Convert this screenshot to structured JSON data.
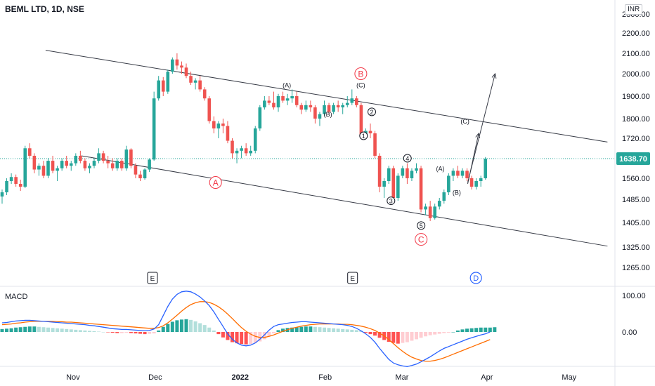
{
  "header": {
    "title": "BEML LTD, 1D, NSE",
    "currency_badge": "INR"
  },
  "macd_panel": {
    "title": "MACD"
  },
  "last_price_label": "1638.70",
  "chart_data": {
    "type": "candlestick",
    "title": "BEML LTD, 1D, NSE",
    "price_axis": {
      "ticks": [
        "2300.00",
        "2200.00",
        "2100.00",
        "2000.00",
        "1900.00",
        "1800.00",
        "1720.00",
        "1638.70",
        "1560.00",
        "1485.00",
        "1405.00",
        "1325.00",
        "1265.00"
      ]
    },
    "macd_axis": {
      "ticks": [
        "100.00",
        "0.00"
      ]
    },
    "x_axis": {
      "ticks": [
        "Nov",
        "Dec",
        "2022",
        "Feb",
        "Mar",
        "Apr",
        "May"
      ]
    },
    "last_price": 1638.7,
    "wave_labels": [
      {
        "text": "(A)",
        "price": 1950,
        "day": "2022-01-18"
      },
      {
        "text": "(B)",
        "price": 1820,
        "day": "2022-02-02"
      },
      {
        "text": "(C)",
        "price": 1950,
        "day": "2022-02-14"
      },
      {
        "text": "A",
        "price": 1545,
        "day": "2021-12-23"
      },
      {
        "text": "B",
        "price": 2000,
        "day": "2022-02-14"
      },
      {
        "text": "C",
        "price": 1350,
        "day": "2022-03-08"
      },
      {
        "text": "1",
        "price": 1730,
        "day": "2022-02-15"
      },
      {
        "text": "2",
        "price": 1830,
        "day": "2022-02-18"
      },
      {
        "text": "3",
        "price": 1480,
        "day": "2022-02-25"
      },
      {
        "text": "4",
        "price": 1640,
        "day": "2022-03-03"
      },
      {
        "text": "5",
        "price": 1395,
        "day": "2022-03-08"
      },
      {
        "text": "(A)",
        "price": 1600,
        "day": "2022-03-15"
      },
      {
        "text": "(B)",
        "price": 1510,
        "day": "2022-03-21"
      },
      {
        "text": "(C)",
        "price": 1790,
        "day": "2022-03-24"
      }
    ],
    "event_markers": [
      {
        "text": "E",
        "day": "2021-11-30"
      },
      {
        "text": "E",
        "day": "2022-02-11"
      },
      {
        "text": "D",
        "day": "2022-03-28"
      }
    ],
    "channel_lines": [
      {
        "from": {
          "day": "2021-10-22",
          "price": 2115
        },
        "to": {
          "day": "2022-05-15",
          "price": 1705
        }
      },
      {
        "from": {
          "day": "2021-11-04",
          "price": 1650
        },
        "to": {
          "day": "2022-05-15",
          "price": 1328
        }
      }
    ],
    "projection_arrows": [
      {
        "from": {
          "day": "2022-03-25",
          "price": 1545
        },
        "to": {
          "day": "2022-04-04",
          "price": 2000
        }
      },
      {
        "from": {
          "day": "2022-03-25",
          "price": 1540
        },
        "to": {
          "day": "2022-03-29",
          "price": 1740
        }
      }
    ],
    "candles": [
      [
        1495,
        1520,
        1470,
        1510
      ],
      [
        1510,
        1560,
        1500,
        1550
      ],
      [
        1550,
        1580,
        1540,
        1565
      ],
      [
        1565,
        1575,
        1530,
        1540
      ],
      [
        1540,
        1555,
        1515,
        1530
      ],
      [
        1530,
        1690,
        1525,
        1680
      ],
      [
        1680,
        1700,
        1640,
        1650
      ],
      [
        1650,
        1660,
        1580,
        1595
      ],
      [
        1595,
        1620,
        1570,
        1610
      ],
      [
        1610,
        1630,
        1560,
        1570
      ],
      [
        1570,
        1640,
        1560,
        1630
      ],
      [
        1630,
        1650,
        1580,
        1590
      ],
      [
        1590,
        1610,
        1550,
        1600
      ],
      [
        1600,
        1640,
        1590,
        1630
      ],
      [
        1630,
        1650,
        1600,
        1610
      ],
      [
        1610,
        1630,
        1590,
        1620
      ],
      [
        1620,
        1660,
        1610,
        1650
      ],
      [
        1650,
        1670,
        1620,
        1630
      ],
      [
        1630,
        1640,
        1590,
        1600
      ],
      [
        1600,
        1620,
        1580,
        1610
      ],
      [
        1610,
        1640,
        1600,
        1630
      ],
      [
        1630,
        1680,
        1620,
        1660
      ],
      [
        1660,
        1670,
        1620,
        1630
      ],
      [
        1630,
        1650,
        1600,
        1620
      ],
      [
        1620,
        1640,
        1590,
        1600
      ],
      [
        1600,
        1640,
        1590,
        1630
      ],
      [
        1630,
        1640,
        1590,
        1600
      ],
      [
        1600,
        1690,
        1590,
        1675
      ],
      [
        1675,
        1680,
        1600,
        1610
      ],
      [
        1610,
        1620,
        1560,
        1575
      ],
      [
        1575,
        1590,
        1550,
        1560
      ],
      [
        1560,
        1600,
        1555,
        1595
      ],
      [
        1595,
        1640,
        1585,
        1635
      ],
      [
        1635,
        1920,
        1630,
        1890
      ],
      [
        1890,
        1990,
        1880,
        1970
      ],
      [
        1970,
        1985,
        1900,
        1920
      ],
      [
        1920,
        2020,
        1910,
        2010
      ],
      [
        2010,
        2080,
        2000,
        2070
      ],
      [
        2070,
        2100,
        2020,
        2040
      ],
      [
        2040,
        2060,
        2000,
        2030
      ],
      [
        2030,
        2050,
        1980,
        1990
      ],
      [
        1990,
        2010,
        1950,
        1960
      ],
      [
        1960,
        1980,
        1930,
        1970
      ],
      [
        1970,
        1990,
        1920,
        1930
      ],
      [
        1930,
        1940,
        1880,
        1890
      ],
      [
        1890,
        1900,
        1780,
        1790
      ],
      [
        1790,
        1810,
        1740,
        1760
      ],
      [
        1760,
        1790,
        1720,
        1780
      ],
      [
        1780,
        1800,
        1740,
        1770
      ],
      [
        1770,
        1790,
        1700,
        1710
      ],
      [
        1710,
        1720,
        1640,
        1660
      ],
      [
        1660,
        1680,
        1620,
        1670
      ],
      [
        1670,
        1690,
        1640,
        1680
      ],
      [
        1680,
        1700,
        1650,
        1660
      ],
      [
        1660,
        1690,
        1650,
        1670
      ],
      [
        1670,
        1770,
        1660,
        1760
      ],
      [
        1760,
        1860,
        1750,
        1850
      ],
      [
        1850,
        1900,
        1840,
        1880
      ],
      [
        1880,
        1900,
        1860,
        1870
      ],
      [
        1870,
        1920,
        1840,
        1850
      ],
      [
        1850,
        1910,
        1830,
        1900
      ],
      [
        1900,
        1920,
        1870,
        1880
      ],
      [
        1880,
        1910,
        1860,
        1890
      ],
      [
        1890,
        1930,
        1870,
        1900
      ],
      [
        1900,
        1920,
        1850,
        1860
      ],
      [
        1860,
        1870,
        1820,
        1840
      ],
      [
        1840,
        1880,
        1830,
        1860
      ],
      [
        1860,
        1880,
        1830,
        1850
      ],
      [
        1850,
        1860,
        1780,
        1800
      ],
      [
        1800,
        1830,
        1770,
        1820
      ],
      [
        1820,
        1880,
        1810,
        1860
      ],
      [
        1860,
        1870,
        1820,
        1830
      ],
      [
        1830,
        1870,
        1820,
        1860
      ],
      [
        1860,
        1880,
        1830,
        1850
      ],
      [
        1850,
        1870,
        1820,
        1860
      ],
      [
        1860,
        1900,
        1850,
        1870
      ],
      [
        1870,
        1930,
        1860,
        1890
      ],
      [
        1890,
        1900,
        1850,
        1860
      ],
      [
        1860,
        1870,
        1720,
        1730
      ],
      [
        1730,
        1760,
        1720,
        1750
      ],
      [
        1750,
        1780,
        1720,
        1740
      ],
      [
        1740,
        1750,
        1640,
        1650
      ],
      [
        1650,
        1660,
        1510,
        1530
      ],
      [
        1530,
        1560,
        1490,
        1550
      ],
      [
        1550,
        1610,
        1540,
        1600
      ],
      [
        1600,
        1610,
        1480,
        1490
      ],
      [
        1490,
        1580,
        1480,
        1570
      ],
      [
        1570,
        1610,
        1560,
        1600
      ],
      [
        1600,
        1620,
        1540,
        1560
      ],
      [
        1560,
        1600,
        1550,
        1590
      ],
      [
        1590,
        1620,
        1580,
        1600
      ],
      [
        1600,
        1610,
        1440,
        1450
      ],
      [
        1450,
        1470,
        1430,
        1460
      ],
      [
        1460,
        1480,
        1410,
        1420
      ],
      [
        1420,
        1470,
        1415,
        1460
      ],
      [
        1460,
        1490,
        1450,
        1480
      ],
      [
        1480,
        1520,
        1470,
        1510
      ],
      [
        1510,
        1580,
        1500,
        1570
      ],
      [
        1570,
        1600,
        1550,
        1590
      ],
      [
        1590,
        1610,
        1560,
        1570
      ],
      [
        1570,
        1600,
        1560,
        1590
      ],
      [
        1590,
        1600,
        1550,
        1560
      ],
      [
        1560,
        1570,
        1520,
        1530
      ],
      [
        1530,
        1560,
        1520,
        1550
      ],
      [
        1550,
        1570,
        1530,
        1560
      ],
      [
        1560,
        1645,
        1555,
        1638.7
      ]
    ],
    "macd_histogram": [
      8,
      9,
      10,
      12,
      13,
      14,
      15,
      15,
      14,
      13,
      12,
      11,
      10,
      9,
      8,
      7,
      6,
      5,
      4,
      3,
      2,
      1,
      0,
      -1,
      -2,
      -3,
      -3,
      -2,
      -3,
      -4,
      -5,
      -6,
      -5,
      -4,
      4,
      14,
      22,
      28,
      32,
      34,
      35,
      33,
      29,
      24,
      19,
      12,
      4,
      -6,
      -15,
      -22,
      -28,
      -31,
      -33,
      -34,
      -33,
      -30,
      -26,
      -20,
      -12,
      -4,
      5,
      9,
      11,
      12,
      13,
      14,
      15,
      15,
      14,
      13,
      12,
      11,
      10,
      9,
      8,
      7,
      6,
      5,
      3,
      -2,
      -6,
      -10,
      -16,
      -22,
      -27,
      -30,
      -32,
      -30,
      -28,
      -24,
      -20,
      -16,
      -12,
      -9,
      -7,
      -5,
      -3,
      -2,
      0,
      4,
      7,
      9,
      10,
      11,
      12,
      12,
      12,
      13
    ],
    "macd_line": [
      25,
      26,
      28,
      30,
      31,
      32,
      32,
      31,
      30,
      29,
      28,
      27,
      26,
      25,
      24,
      23,
      22,
      21,
      20,
      18,
      17,
      15,
      13,
      11,
      9,
      8,
      7,
      7,
      6,
      5,
      4,
      3,
      4,
      8,
      20,
      45,
      70,
      90,
      103,
      110,
      112,
      110,
      104,
      96,
      85,
      72,
      55,
      35,
      15,
      -5,
      -20,
      -30,
      -36,
      -38,
      -36,
      -30,
      -20,
      -8,
      5,
      15,
      20,
      22,
      24,
      26,
      27,
      28,
      28,
      27,
      26,
      25,
      24,
      23,
      22,
      21,
      20,
      18,
      15,
      10,
      3,
      -5,
      -15,
      -28,
      -45,
      -60,
      -75,
      -85,
      -90,
      -93,
      -95,
      -92,
      -88,
      -82,
      -75,
      -68,
      -60,
      -52,
      -45,
      -40,
      -35,
      -30,
      -25,
      -20,
      -16,
      -12,
      -8,
      -5,
      0
    ],
    "signal_line": [
      20,
      21,
      22,
      24,
      25,
      27,
      28,
      29,
      29,
      29,
      29,
      29,
      28,
      28,
      27,
      27,
      26,
      25,
      24,
      23,
      22,
      21,
      20,
      19,
      18,
      17,
      16,
      15,
      14,
      13,
      12,
      11,
      10,
      10,
      12,
      17,
      25,
      35,
      46,
      57,
      67,
      75,
      80,
      83,
      83,
      81,
      76,
      69,
      60,
      49,
      37,
      24,
      12,
      2,
      -6,
      -12,
      -15,
      -15,
      -12,
      -8,
      -3,
      2,
      6,
      10,
      13,
      16,
      18,
      20,
      21,
      22,
      22,
      22,
      22,
      22,
      21,
      21,
      20,
      18,
      16,
      13,
      9,
      4,
      -3,
      -11,
      -21,
      -32,
      -43,
      -53,
      -62,
      -69,
      -74,
      -78,
      -80,
      -80,
      -78,
      -75,
      -71,
      -66,
      -61,
      -56,
      -51,
      -46,
      -41,
      -36,
      -31,
      -26,
      -21
    ]
  }
}
